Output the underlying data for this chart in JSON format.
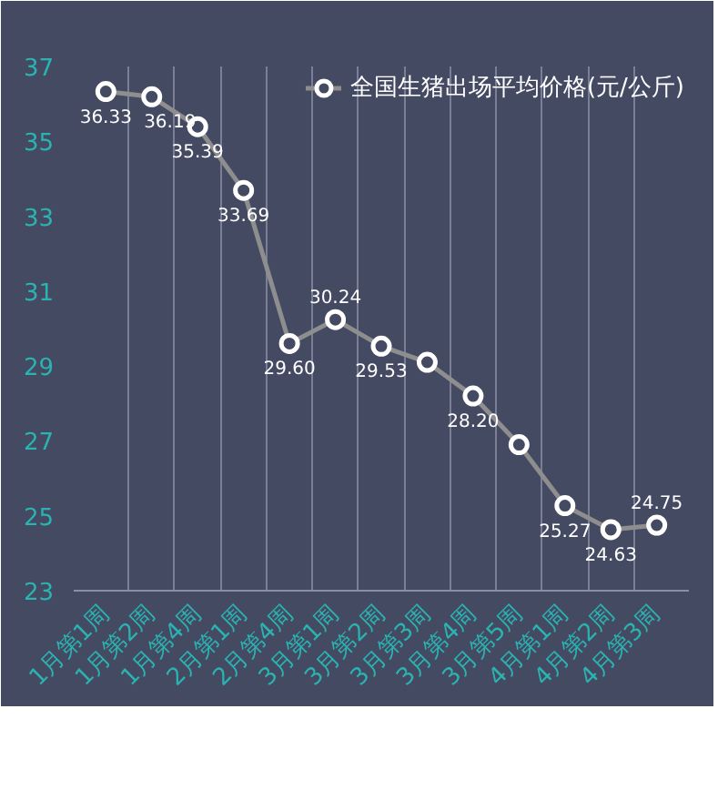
{
  "chart_data": {
    "type": "line",
    "categories": [
      "1月第1周",
      "1月第2周",
      "1月第4周",
      "2月第1周",
      "2月第4周",
      "3月第1周",
      "3月第2周",
      "3月第3周",
      "3月第4周",
      "3月第5周",
      "4月第1周",
      "4月第2周",
      "4月第3周"
    ],
    "series": [
      {
        "name": "全国生猪出场平均价格(元/公斤)",
        "color": "#8e8e8e",
        "values": [
          36.33,
          36.19,
          35.39,
          33.69,
          29.6,
          30.24,
          29.53,
          29.1,
          28.2,
          26.9,
          25.27,
          24.63,
          24.75
        ],
        "value_labels": [
          "36.33",
          "36.19",
          "35.39",
          "33.69",
          "29.60",
          "30.24",
          "29.53",
          null,
          "28.20",
          null,
          "25.27",
          "24.63",
          "24.75"
        ]
      }
    ],
    "ylim": [
      23,
      37
    ],
    "yticks": [
      23,
      25,
      27,
      29,
      31,
      33,
      35,
      37
    ],
    "grid": "x",
    "legend": "top",
    "marker": "circle",
    "line_style": "solid"
  }
}
